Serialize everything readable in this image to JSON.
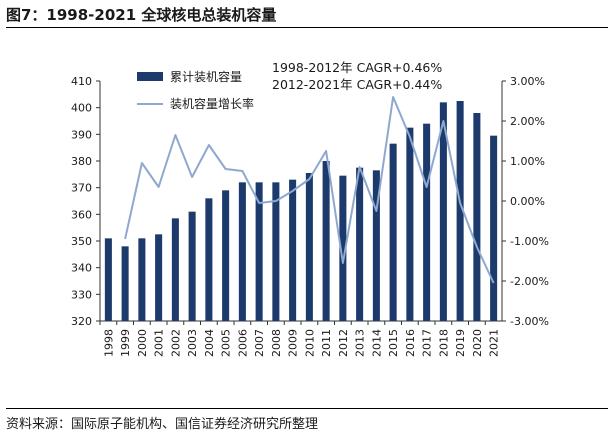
{
  "figure": {
    "title": "图7：1998-2021 全球核电总装机容量",
    "source": "资料来源：国际原子能机构、国信证券经济研究所整理"
  },
  "chart_data": {
    "type": "bar",
    "categories": [
      "1998",
      "1999",
      "2000",
      "2001",
      "2002",
      "2003",
      "2004",
      "2005",
      "2006",
      "2007",
      "2008",
      "2009",
      "2010",
      "2011",
      "2012",
      "2013",
      "2014",
      "2015",
      "2016",
      "2017",
      "2018",
      "2019",
      "2020",
      "2021"
    ],
    "series": [
      {
        "name": "累计装机容量",
        "type": "bar",
        "axis": "left",
        "color": "#1c3a6b",
        "values": [
          351,
          348,
          351,
          352.5,
          358.5,
          361,
          366,
          369,
          372,
          372,
          372,
          373,
          375.5,
          380,
          374.5,
          377.5,
          376.5,
          386.5,
          392.5,
          394,
          402,
          402.5,
          398,
          389.5
        ]
      },
      {
        "name": "装机容量增长率",
        "type": "line",
        "axis": "right",
        "color": "#8fa8d0",
        "values": [
          null,
          -0.95,
          0.95,
          0.35,
          1.65,
          0.6,
          1.4,
          0.8,
          0.75,
          -0.05,
          0.0,
          0.25,
          0.55,
          1.25,
          -1.55,
          0.85,
          -0.25,
          2.6,
          1.6,
          0.35,
          2.0,
          -0.05,
          -1.15,
          -2.05
        ]
      }
    ],
    "yleft": {
      "min": 320,
      "max": 410,
      "step": 10,
      "ticks": [
        "320",
        "330",
        "340",
        "350",
        "360",
        "370",
        "380",
        "390",
        "400",
        "410"
      ]
    },
    "yright": {
      "min": -3,
      "max": 3,
      "step": 1,
      "ticks": [
        "-3.00%",
        "-2.00%",
        "-1.00%",
        "0.00%",
        "1.00%",
        "2.00%",
        "3.00%"
      ]
    },
    "annotations": [
      "1998-2012年 CAGR+0.46%",
      "2012-2021年 CAGR+0.44%"
    ],
    "legend_position": "top-left",
    "grid": false
  }
}
